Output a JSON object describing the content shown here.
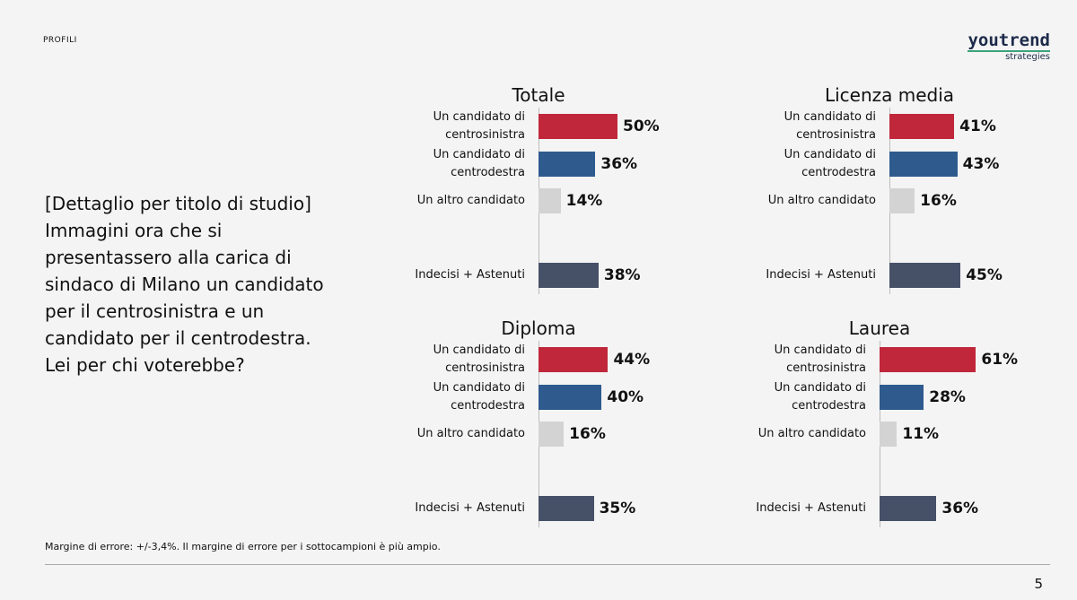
{
  "header": {
    "section": "PROFILI",
    "logo": "youtrend",
    "logo_sub": "strategies"
  },
  "question": "[Dettaglio per titolo di studio] Immagini ora che si presentassero alla carica di sindaco di Milano un candidato per il centrosinistra e un candidato per il centrodestra. Lei per chi voterebbe?",
  "footnote": "Margine di errore: +/-3,4%. Il margine di errore per i sottocampioni è più ampio.",
  "page_number": "5",
  "chart_data": [
    {
      "type": "bar",
      "orientation": "horizontal",
      "title": "Totale",
      "categories": [
        "Un candidato di centrosinistra",
        "Un candidato di centrodestra",
        "Un altro candidato",
        null,
        "Indecisi + Astenuti"
      ],
      "values": [
        50,
        36,
        14,
        null,
        38
      ],
      "value_labels": [
        "50%",
        "36%",
        "14%",
        null,
        "38%"
      ],
      "colors": [
        "#c0273a",
        "#2e5a8e",
        "#d3d3d3",
        null,
        "#465168"
      ]
    },
    {
      "type": "bar",
      "orientation": "horizontal",
      "title": "Licenza media",
      "categories": [
        "Un candidato di centrosinistra",
        "Un candidato di centrodestra",
        "Un altro candidato",
        null,
        "Indecisi + Astenuti"
      ],
      "values": [
        41,
        43,
        16,
        null,
        45
      ],
      "value_labels": [
        "41%",
        "43%",
        "16%",
        null,
        "45%"
      ],
      "colors": [
        "#c0273a",
        "#2e5a8e",
        "#d3d3d3",
        null,
        "#465168"
      ]
    },
    {
      "type": "bar",
      "orientation": "horizontal",
      "title": "Diploma",
      "categories": [
        "Un candidato di centrosinistra",
        "Un candidato di centrodestra",
        "Un altro candidato",
        null,
        "Indecisi + Astenuti"
      ],
      "values": [
        44,
        40,
        16,
        null,
        35
      ],
      "value_labels": [
        "44%",
        "40%",
        "16%",
        null,
        "35%"
      ],
      "colors": [
        "#c0273a",
        "#2e5a8e",
        "#d3d3d3",
        null,
        "#465168"
      ]
    },
    {
      "type": "bar",
      "orientation": "horizontal",
      "title": "Laurea",
      "categories": [
        "Un candidato di centrosinistra",
        "Un candidato di centrodestra",
        "Un altro candidato",
        null,
        "Indecisi + Astenuti"
      ],
      "values": [
        61,
        28,
        11,
        null,
        36
      ],
      "value_labels": [
        "61%",
        "28%",
        "11%",
        null,
        "36%"
      ],
      "colors": [
        "#c0273a",
        "#2e5a8e",
        "#d3d3d3",
        null,
        "#465168"
      ]
    }
  ]
}
